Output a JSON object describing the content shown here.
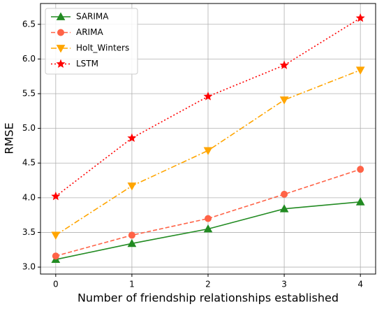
{
  "chart_data": {
    "type": "line",
    "x_label": "Number of friendship relationships established",
    "y_label": "RMSE",
    "x": [
      0,
      1,
      2,
      3,
      4
    ],
    "xlim": [
      -0.2,
      4.2
    ],
    "xticks": [
      0,
      1,
      2,
      3,
      4
    ],
    "ylim": [
      2.9,
      6.8
    ],
    "yticks": [
      {
        "value": 3.0,
        "label": "3.0"
      },
      3.5,
      {
        "value": 4.0,
        "label": "4.0"
      },
      4.5,
      {
        "value": 5.0,
        "label": "5.0"
      },
      5.5,
      {
        "value": 6.0,
        "label": "6.0"
      },
      6.5
    ],
    "grid": true,
    "legend": "upper left",
    "series": [
      {
        "name": "SARIMA",
        "color": "#228b22",
        "linestyle": "solid",
        "marker": "triangle-up",
        "values": [
          3.11,
          3.34,
          3.55,
          3.84,
          3.94
        ]
      },
      {
        "name": "ARIMA",
        "color": "#ff6347",
        "linestyle": "dashed",
        "marker": "circle",
        "values": [
          3.16,
          3.46,
          3.7,
          4.05,
          4.41
        ]
      },
      {
        "name": "Holt_Winters",
        "color": "#ffa500",
        "linestyle": "dashdot",
        "marker": "triangle-down",
        "values": [
          3.46,
          4.17,
          4.68,
          5.41,
          5.84
        ]
      },
      {
        "name": "LSTM",
        "color": "#ff0000",
        "linestyle": "dotted",
        "marker": "star",
        "values": [
          4.02,
          4.86,
          5.46,
          5.91,
          6.59
        ]
      }
    ]
  }
}
